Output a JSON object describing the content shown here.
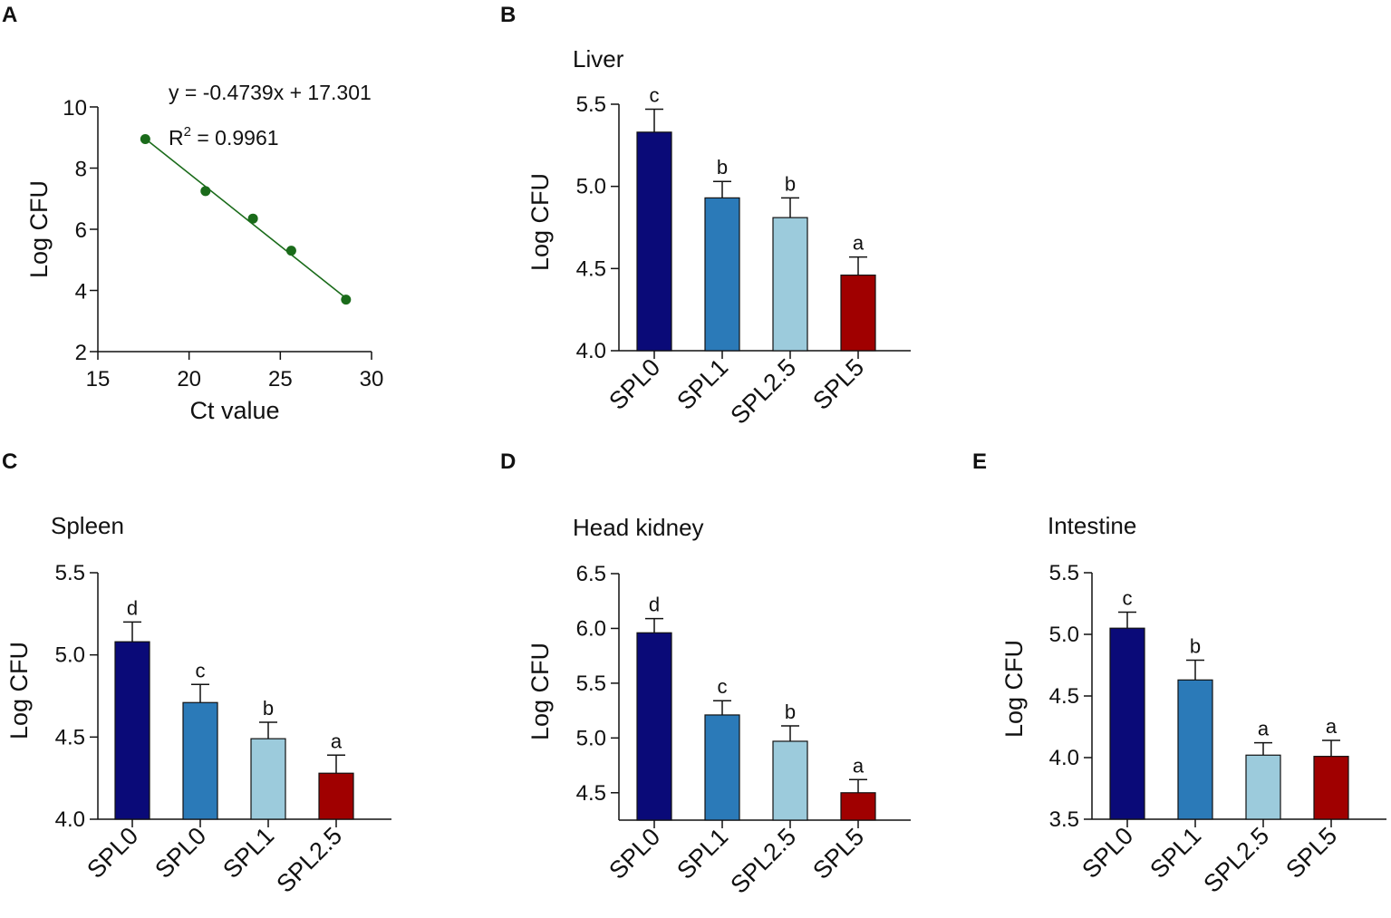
{
  "figure": {
    "panels": {
      "A": "A",
      "B": "B",
      "C": "C",
      "D": "D",
      "E": "E"
    }
  },
  "chart_data": [
    {
      "id": "A",
      "type": "scatter",
      "title": "",
      "xlabel": "Ct value",
      "ylabel": "Log CFU",
      "xlim": [
        15,
        30
      ],
      "ylim": [
        2,
        10
      ],
      "xticks": [
        "15",
        "20",
        "25",
        "30"
      ],
      "yticks": [
        "2",
        "4",
        "6",
        "8",
        "10"
      ],
      "x": [
        17.6,
        20.9,
        23.5,
        25.6,
        28.6
      ],
      "y": [
        8.95,
        7.25,
        6.35,
        5.3,
        3.7
      ],
      "trendline": {
        "slope": -0.4739,
        "intercept": 17.301,
        "x_range": [
          17.6,
          28.6
        ]
      },
      "point_color": "#1a6b1a",
      "annotations": {
        "equation": "y = -0.4739x + 17.301",
        "r2_prefix": "R",
        "r2_sup": "2",
        "r2_value": " = 0.9961"
      }
    },
    {
      "id": "B",
      "type": "bar",
      "title": "Liver",
      "ylabel": "Log CFU",
      "ylim": [
        4.0,
        5.5
      ],
      "yticks": [
        "4.0",
        "4.5",
        "5.0",
        "5.5"
      ],
      "categories": [
        "SPL0",
        "SPL1",
        "SPL2.5",
        "SPL5"
      ],
      "values": [
        5.33,
        4.93,
        4.81,
        4.46
      ],
      "errors": [
        0.14,
        0.1,
        0.12,
        0.11
      ],
      "labels": [
        "c",
        "b",
        "b",
        "a"
      ],
      "colors": [
        "#0a0a78",
        "#2b7ab8",
        "#9ccbdc",
        "#a00000"
      ]
    },
    {
      "id": "C",
      "type": "bar",
      "title": "Spleen",
      "ylabel": "Log CFU",
      "ylim": [
        4.0,
        5.5
      ],
      "yticks": [
        "4.0",
        "4.5",
        "5.0",
        "5.5"
      ],
      "categories": [
        "SPL0",
        "SPL0",
        "SPL1",
        "SPL2.5"
      ],
      "values": [
        5.08,
        4.71,
        4.49,
        4.28
      ],
      "errors": [
        0.12,
        0.11,
        0.1,
        0.11
      ],
      "labels": [
        "d",
        "c",
        "b",
        "a"
      ],
      "colors": [
        "#0a0a78",
        "#2b7ab8",
        "#9ccbdc",
        "#a00000"
      ]
    },
    {
      "id": "D",
      "type": "bar",
      "title": "Head kidney",
      "ylabel": "Log CFU",
      "ylim": [
        4.25,
        6.5
      ],
      "yticks": [
        "4.5",
        "5.0",
        "5.5",
        "6.0",
        "6.5"
      ],
      "tick_values": [
        4.5,
        5.0,
        5.5,
        6.0,
        6.5
      ],
      "categories": [
        "SPL0",
        "SPL1",
        "SPL2.5",
        "SPL5"
      ],
      "values": [
        5.96,
        5.21,
        4.97,
        4.5
      ],
      "errors": [
        0.13,
        0.13,
        0.14,
        0.12
      ],
      "labels": [
        "d",
        "c",
        "b",
        "a"
      ],
      "colors": [
        "#0a0a78",
        "#2b7ab8",
        "#9ccbdc",
        "#a00000"
      ]
    },
    {
      "id": "E",
      "type": "bar",
      "title": "Intestine",
      "ylabel": "Log CFU",
      "ylim": [
        3.5,
        5.5
      ],
      "yticks": [
        "3.5",
        "4.0",
        "4.5",
        "5.0",
        "5.5"
      ],
      "categories": [
        "SPL0",
        "SPL1",
        "SPL2.5",
        "SPL5"
      ],
      "values": [
        5.05,
        4.63,
        4.02,
        4.01
      ],
      "errors": [
        0.13,
        0.16,
        0.1,
        0.13
      ],
      "labels": [
        "c",
        "b",
        "a",
        "a"
      ],
      "colors": [
        "#0a0a78",
        "#2b7ab8",
        "#9ccbdc",
        "#a00000"
      ]
    }
  ]
}
